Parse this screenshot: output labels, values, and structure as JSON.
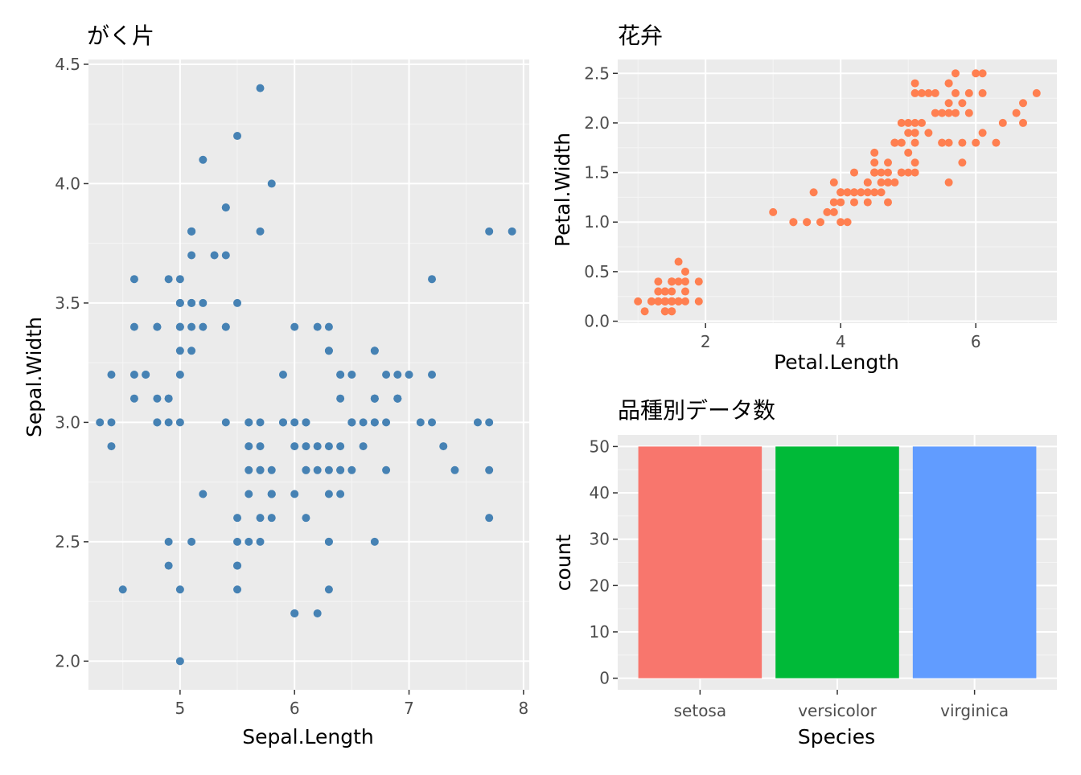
{
  "chart_data": [
    {
      "type": "scatter",
      "title": "がく片",
      "xlabel": "Sepal.Length",
      "ylabel": "Sepal.Width",
      "xlim": [
        4.2,
        8.05
      ],
      "ylim": [
        1.88,
        4.52
      ],
      "xticks": [
        5,
        6,
        7,
        8
      ],
      "yticks": [
        2.0,
        2.5,
        3.0,
        3.5,
        4.0,
        4.5
      ],
      "ytick_labels": [
        "2.0",
        "2.5",
        "3.0",
        "3.5",
        "4.0",
        "4.5"
      ],
      "grid": true,
      "point_color": "#4682B4",
      "points": [
        [
          5.1,
          3.5
        ],
        [
          4.9,
          3.0
        ],
        [
          4.7,
          3.2
        ],
        [
          4.6,
          3.1
        ],
        [
          5.0,
          3.6
        ],
        [
          5.4,
          3.9
        ],
        [
          4.6,
          3.4
        ],
        [
          5.0,
          3.4
        ],
        [
          4.4,
          2.9
        ],
        [
          4.9,
          3.1
        ],
        [
          5.4,
          3.7
        ],
        [
          4.8,
          3.4
        ],
        [
          4.8,
          3.0
        ],
        [
          4.3,
          3.0
        ],
        [
          5.8,
          4.0
        ],
        [
          5.7,
          4.4
        ],
        [
          5.4,
          3.9
        ],
        [
          5.1,
          3.5
        ],
        [
          5.7,
          3.8
        ],
        [
          5.1,
          3.8
        ],
        [
          5.4,
          3.4
        ],
        [
          5.1,
          3.7
        ],
        [
          4.6,
          3.6
        ],
        [
          5.1,
          3.3
        ],
        [
          4.8,
          3.4
        ],
        [
          5.0,
          3.0
        ],
        [
          5.0,
          3.4
        ],
        [
          5.2,
          3.5
        ],
        [
          5.2,
          3.4
        ],
        [
          4.7,
          3.2
        ],
        [
          4.8,
          3.1
        ],
        [
          5.4,
          3.4
        ],
        [
          5.2,
          4.1
        ],
        [
          5.5,
          4.2
        ],
        [
          4.9,
          3.1
        ],
        [
          5.0,
          3.2
        ],
        [
          5.5,
          3.5
        ],
        [
          4.9,
          3.6
        ],
        [
          4.4,
          3.0
        ],
        [
          5.1,
          3.4
        ],
        [
          5.0,
          3.5
        ],
        [
          4.5,
          2.3
        ],
        [
          4.4,
          3.2
        ],
        [
          5.0,
          3.5
        ],
        [
          5.1,
          3.8
        ],
        [
          4.8,
          3.0
        ],
        [
          5.1,
          3.8
        ],
        [
          4.6,
          3.2
        ],
        [
          5.3,
          3.7
        ],
        [
          5.0,
          3.3
        ],
        [
          7.0,
          3.2
        ],
        [
          6.4,
          3.2
        ],
        [
          6.9,
          3.1
        ],
        [
          5.5,
          2.3
        ],
        [
          6.5,
          2.8
        ],
        [
          5.7,
          2.8
        ],
        [
          6.3,
          3.3
        ],
        [
          4.9,
          2.4
        ],
        [
          6.6,
          2.9
        ],
        [
          5.2,
          2.7
        ],
        [
          5.0,
          2.0
        ],
        [
          5.9,
          3.0
        ],
        [
          6.0,
          2.2
        ],
        [
          6.1,
          2.9
        ],
        [
          5.6,
          2.9
        ],
        [
          6.7,
          3.1
        ],
        [
          5.6,
          3.0
        ],
        [
          5.8,
          2.7
        ],
        [
          6.2,
          2.2
        ],
        [
          5.6,
          2.5
        ],
        [
          5.9,
          3.2
        ],
        [
          6.1,
          2.8
        ],
        [
          6.3,
          2.5
        ],
        [
          6.1,
          2.8
        ],
        [
          6.4,
          2.9
        ],
        [
          6.6,
          3.0
        ],
        [
          6.8,
          2.8
        ],
        [
          6.7,
          3.0
        ],
        [
          6.0,
          2.9
        ],
        [
          5.7,
          2.6
        ],
        [
          5.5,
          2.4
        ],
        [
          5.5,
          2.4
        ],
        [
          5.8,
          2.7
        ],
        [
          6.0,
          2.7
        ],
        [
          5.4,
          3.0
        ],
        [
          6.0,
          3.4
        ],
        [
          6.7,
          3.1
        ],
        [
          6.3,
          2.3
        ],
        [
          5.6,
          3.0
        ],
        [
          5.5,
          2.5
        ],
        [
          5.5,
          2.6
        ],
        [
          6.1,
          3.0
        ],
        [
          5.8,
          2.6
        ],
        [
          5.0,
          2.3
        ],
        [
          5.6,
          2.7
        ],
        [
          5.7,
          3.0
        ],
        [
          5.7,
          2.9
        ],
        [
          6.2,
          2.9
        ],
        [
          5.1,
          2.5
        ],
        [
          5.7,
          2.8
        ],
        [
          6.3,
          3.3
        ],
        [
          5.8,
          2.7
        ],
        [
          7.1,
          3.0
        ],
        [
          6.3,
          2.9
        ],
        [
          6.5,
          3.0
        ],
        [
          7.6,
          3.0
        ],
        [
          4.9,
          2.5
        ],
        [
          7.3,
          2.9
        ],
        [
          6.7,
          2.5
        ],
        [
          7.2,
          3.6
        ],
        [
          6.5,
          3.2
        ],
        [
          6.4,
          2.7
        ],
        [
          6.8,
          3.0
        ],
        [
          5.7,
          2.5
        ],
        [
          5.8,
          2.8
        ],
        [
          6.4,
          3.2
        ],
        [
          6.5,
          3.0
        ],
        [
          7.7,
          3.8
        ],
        [
          7.7,
          2.6
        ],
        [
          6.0,
          2.2
        ],
        [
          6.9,
          3.2
        ],
        [
          5.6,
          2.8
        ],
        [
          7.7,
          2.8
        ],
        [
          6.3,
          2.7
        ],
        [
          6.7,
          3.3
        ],
        [
          7.2,
          3.2
        ],
        [
          6.2,
          2.8
        ],
        [
          6.1,
          3.0
        ],
        [
          6.4,
          2.8
        ],
        [
          7.2,
          3.0
        ],
        [
          7.4,
          2.8
        ],
        [
          7.9,
          3.8
        ],
        [
          6.4,
          2.8
        ],
        [
          6.3,
          2.8
        ],
        [
          6.1,
          2.6
        ],
        [
          7.7,
          3.0
        ],
        [
          6.3,
          3.4
        ],
        [
          6.4,
          3.1
        ],
        [
          6.0,
          3.0
        ],
        [
          6.9,
          3.1
        ],
        [
          6.7,
          3.1
        ],
        [
          6.9,
          3.1
        ],
        [
          5.8,
          2.7
        ],
        [
          6.8,
          3.2
        ],
        [
          6.7,
          3.3
        ],
        [
          6.7,
          3.0
        ],
        [
          6.3,
          2.5
        ],
        [
          6.5,
          3.0
        ],
        [
          6.2,
          3.4
        ],
        [
          5.9,
          3.0
        ]
      ]
    },
    {
      "type": "scatter",
      "title": "花弁",
      "xlabel": "Petal.Length",
      "ylabel": "Petal.Width",
      "xlim": [
        0.7,
        7.2
      ],
      "ylim": [
        -0.02,
        2.64
      ],
      "xticks": [
        2,
        4,
        6
      ],
      "yticks": [
        0.0,
        0.5,
        1.0,
        1.5,
        2.0,
        2.5
      ],
      "ytick_labels": [
        "0.0",
        "0.5",
        "1.0",
        "1.5",
        "2.0",
        "2.5"
      ],
      "grid": true,
      "point_color": "#FF7F50",
      "points": [
        [
          1.4,
          0.2
        ],
        [
          1.4,
          0.2
        ],
        [
          1.3,
          0.2
        ],
        [
          1.5,
          0.2
        ],
        [
          1.4,
          0.2
        ],
        [
          1.7,
          0.4
        ],
        [
          1.4,
          0.3
        ],
        [
          1.5,
          0.2
        ],
        [
          1.4,
          0.2
        ],
        [
          1.5,
          0.1
        ],
        [
          1.5,
          0.2
        ],
        [
          1.6,
          0.2
        ],
        [
          1.4,
          0.1
        ],
        [
          1.1,
          0.1
        ],
        [
          1.2,
          0.2
        ],
        [
          1.5,
          0.4
        ],
        [
          1.3,
          0.4
        ],
        [
          1.4,
          0.3
        ],
        [
          1.7,
          0.3
        ],
        [
          1.5,
          0.3
        ],
        [
          1.7,
          0.2
        ],
        [
          1.5,
          0.4
        ],
        [
          1.0,
          0.2
        ],
        [
          1.7,
          0.5
        ],
        [
          1.9,
          0.2
        ],
        [
          1.6,
          0.2
        ],
        [
          1.6,
          0.4
        ],
        [
          1.5,
          0.2
        ],
        [
          1.4,
          0.2
        ],
        [
          1.6,
          0.2
        ],
        [
          1.6,
          0.2
        ],
        [
          1.5,
          0.4
        ],
        [
          1.5,
          0.1
        ],
        [
          1.4,
          0.2
        ],
        [
          1.5,
          0.2
        ],
        [
          1.2,
          0.2
        ],
        [
          1.3,
          0.2
        ],
        [
          1.4,
          0.1
        ],
        [
          1.3,
          0.2
        ],
        [
          1.5,
          0.2
        ],
        [
          1.3,
          0.3
        ],
        [
          1.3,
          0.3
        ],
        [
          1.3,
          0.2
        ],
        [
          1.6,
          0.6
        ],
        [
          1.9,
          0.4
        ],
        [
          1.4,
          0.3
        ],
        [
          1.6,
          0.2
        ],
        [
          1.4,
          0.2
        ],
        [
          1.5,
          0.2
        ],
        [
          1.4,
          0.2
        ],
        [
          4.7,
          1.4
        ],
        [
          4.5,
          1.5
        ],
        [
          4.9,
          1.5
        ],
        [
          4.0,
          1.3
        ],
        [
          4.6,
          1.5
        ],
        [
          4.5,
          1.3
        ],
        [
          4.7,
          1.6
        ],
        [
          3.3,
          1.0
        ],
        [
          4.6,
          1.3
        ],
        [
          3.9,
          1.4
        ],
        [
          3.5,
          1.0
        ],
        [
          4.2,
          1.5
        ],
        [
          4.0,
          1.0
        ],
        [
          4.7,
          1.4
        ],
        [
          3.6,
          1.3
        ],
        [
          4.4,
          1.4
        ],
        [
          4.5,
          1.5
        ],
        [
          4.1,
          1.0
        ],
        [
          4.5,
          1.5
        ],
        [
          3.9,
          1.1
        ],
        [
          4.8,
          1.8
        ],
        [
          4.0,
          1.3
        ],
        [
          4.9,
          1.5
        ],
        [
          4.7,
          1.2
        ],
        [
          4.3,
          1.3
        ],
        [
          4.4,
          1.4
        ],
        [
          4.8,
          1.4
        ],
        [
          5.0,
          1.7
        ],
        [
          4.5,
          1.5
        ],
        [
          3.5,
          1.0
        ],
        [
          3.8,
          1.1
        ],
        [
          3.7,
          1.0
        ],
        [
          3.9,
          1.2
        ],
        [
          5.1,
          1.6
        ],
        [
          4.5,
          1.5
        ],
        [
          4.5,
          1.6
        ],
        [
          4.7,
          1.5
        ],
        [
          4.4,
          1.3
        ],
        [
          4.1,
          1.3
        ],
        [
          4.0,
          1.3
        ],
        [
          4.4,
          1.2
        ],
        [
          4.6,
          1.4
        ],
        [
          4.0,
          1.2
        ],
        [
          3.3,
          1.0
        ],
        [
          4.2,
          1.3
        ],
        [
          4.2,
          1.2
        ],
        [
          4.2,
          1.3
        ],
        [
          4.3,
          1.3
        ],
        [
          3.0,
          1.1
        ],
        [
          4.1,
          1.3
        ],
        [
          6.0,
          2.5
        ],
        [
          5.1,
          1.9
        ],
        [
          5.9,
          2.1
        ],
        [
          5.6,
          1.8
        ],
        [
          5.8,
          2.2
        ],
        [
          6.6,
          2.1
        ],
        [
          4.5,
          1.7
        ],
        [
          6.3,
          1.8
        ],
        [
          5.8,
          1.8
        ],
        [
          6.1,
          2.5
        ],
        [
          5.1,
          2.0
        ],
        [
          5.3,
          1.9
        ],
        [
          5.5,
          2.1
        ],
        [
          5.0,
          2.0
        ],
        [
          5.1,
          2.4
        ],
        [
          5.3,
          2.3
        ],
        [
          5.5,
          1.8
        ],
        [
          6.7,
          2.2
        ],
        [
          6.9,
          2.3
        ],
        [
          5.0,
          1.5
        ],
        [
          5.7,
          2.3
        ],
        [
          4.9,
          2.0
        ],
        [
          6.7,
          2.0
        ],
        [
          4.9,
          1.8
        ],
        [
          5.7,
          2.1
        ],
        [
          6.0,
          1.8
        ],
        [
          4.8,
          1.8
        ],
        [
          4.9,
          1.8
        ],
        [
          5.6,
          2.1
        ],
        [
          5.8,
          1.6
        ],
        [
          6.1,
          1.9
        ],
        [
          6.4,
          2.0
        ],
        [
          5.6,
          2.2
        ],
        [
          5.1,
          1.5
        ],
        [
          5.6,
          1.4
        ],
        [
          6.1,
          2.3
        ],
        [
          5.6,
          2.4
        ],
        [
          5.5,
          1.8
        ],
        [
          4.8,
          1.8
        ],
        [
          5.4,
          2.1
        ],
        [
          5.6,
          2.4
        ],
        [
          5.1,
          2.3
        ],
        [
          5.1,
          1.9
        ],
        [
          5.9,
          2.3
        ],
        [
          5.7,
          2.5
        ],
        [
          5.2,
          2.3
        ],
        [
          5.0,
          1.9
        ],
        [
          5.2,
          2.0
        ],
        [
          5.4,
          2.3
        ],
        [
          5.1,
          1.8
        ]
      ]
    },
    {
      "type": "bar",
      "title": "品種別データ数",
      "xlabel": "Species",
      "ylabel": "count",
      "categories": [
        "setosa",
        "versicolor",
        "virginica"
      ],
      "values": [
        50,
        50,
        50
      ],
      "colors": [
        "#F8766D",
        "#00BA38",
        "#619CFF"
      ],
      "ylim": [
        -2.5,
        52.5
      ],
      "yticks": [
        0,
        10,
        20,
        30,
        40,
        50
      ],
      "grid": true
    }
  ],
  "theme": {
    "panel_bg": "#EBEBEB",
    "grid_major": "#FFFFFF",
    "grid_minor": "#F5F5F5",
    "axis_text": "#4D4D4D",
    "title_text": "#000000"
  }
}
